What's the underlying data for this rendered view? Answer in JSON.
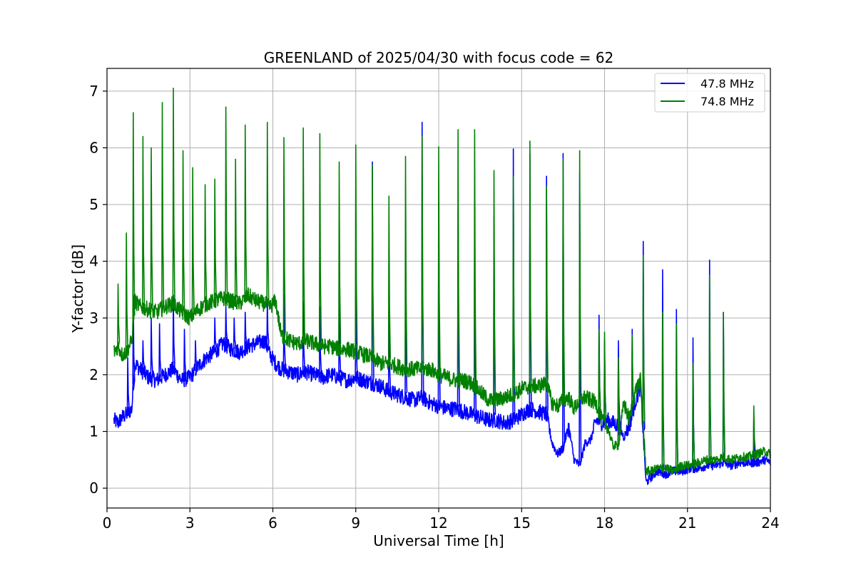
{
  "chart_data": {
    "type": "line",
    "title": "GREENLAND of 2025/04/30 with focus code = 62",
    "xlabel": "Universal Time [h]",
    "ylabel": "Y-factor [dB]",
    "xlim": [
      0,
      24
    ],
    "ylim": [
      -0.35,
      7.4
    ],
    "xticks": [
      0,
      3,
      6,
      9,
      12,
      15,
      18,
      21,
      24
    ],
    "yticks": [
      0,
      1,
      2,
      3,
      4,
      5,
      6,
      7
    ],
    "grid": true,
    "legend_position": "top-right",
    "series": [
      {
        "name": "47.8 MHz",
        "color": "#0000ff",
        "x": [
          0.25,
          0.4,
          0.55,
          0.7,
          0.9,
          1.0,
          1.2,
          1.5,
          1.8,
          2.1,
          2.4,
          2.7,
          3.0,
          3.3,
          3.6,
          3.9,
          4.2,
          4.5,
          4.8,
          5.1,
          5.4,
          5.7,
          5.9,
          6.1,
          6.3,
          6.6,
          6.9,
          7.2,
          7.5,
          7.8,
          8.1,
          8.4,
          8.7,
          9.0,
          9.3,
          9.6,
          9.9,
          10.2,
          10.5,
          10.8,
          11.1,
          11.4,
          11.7,
          12.0,
          12.3,
          12.6,
          12.9,
          13.2,
          13.5,
          13.8,
          14.1,
          14.4,
          14.7,
          15.0,
          15.3,
          15.6,
          15.9,
          16.1,
          16.3,
          16.5,
          16.7,
          16.9,
          17.1,
          17.3,
          17.5,
          17.7,
          17.9,
          18.1,
          18.3,
          18.5,
          18.7,
          18.9,
          19.1,
          19.3,
          19.5,
          19.7,
          19.9,
          20.2,
          20.5,
          20.8,
          21.1,
          21.4,
          21.7,
          22.0,
          22.3,
          22.6,
          22.9,
          23.2,
          23.5,
          23.8,
          24.0
        ],
        "y": [
          1.2,
          1.15,
          1.25,
          1.3,
          1.4,
          2.2,
          2.1,
          1.95,
          1.9,
          2.0,
          2.1,
          1.9,
          1.95,
          2.15,
          2.3,
          2.4,
          2.55,
          2.45,
          2.4,
          2.5,
          2.55,
          2.6,
          2.35,
          2.2,
          2.1,
          2.05,
          2.0,
          2.05,
          2.0,
          1.95,
          2.0,
          1.95,
          1.9,
          1.95,
          1.9,
          1.85,
          1.8,
          1.7,
          1.65,
          1.6,
          1.55,
          1.6,
          1.5,
          1.45,
          1.4,
          1.4,
          1.35,
          1.3,
          1.25,
          1.2,
          1.2,
          1.15,
          1.2,
          1.3,
          1.4,
          1.35,
          1.3,
          0.8,
          0.6,
          0.7,
          1.1,
          0.5,
          0.4,
          0.8,
          0.85,
          1.2,
          1.15,
          1.2,
          1.15,
          1.1,
          0.9,
          1.1,
          1.5,
          1.8,
          0.1,
          0.2,
          0.3,
          0.25,
          0.3,
          0.3,
          0.35,
          0.35,
          0.4,
          0.4,
          0.45,
          0.4,
          0.45,
          0.45,
          0.45,
          0.5,
          0.45
        ],
        "spikes": [
          [
            0.75,
            2.3
          ],
          [
            0.95,
            3.4
          ],
          [
            1.3,
            2.6
          ],
          [
            1.6,
            3.0
          ],
          [
            1.9,
            2.9
          ],
          [
            2.4,
            3.4
          ],
          [
            2.8,
            2.8
          ],
          [
            3.2,
            2.6
          ],
          [
            3.9,
            3.0
          ],
          [
            4.3,
            3.2
          ],
          [
            4.6,
            3.0
          ],
          [
            5.0,
            3.1
          ],
          [
            5.8,
            3.3
          ],
          [
            6.4,
            3.4
          ],
          [
            7.1,
            3.3
          ],
          [
            7.7,
            3.2
          ],
          [
            8.4,
            3.3
          ],
          [
            9.0,
            3.5
          ],
          [
            9.6,
            5.75
          ],
          [
            10.2,
            3.2
          ],
          [
            10.8,
            3.3
          ],
          [
            11.4,
            6.45
          ],
          [
            12.0,
            5.05
          ],
          [
            12.7,
            4.9
          ],
          [
            13.3,
            4.7
          ],
          [
            14.0,
            4.8
          ],
          [
            14.7,
            5.98
          ],
          [
            15.3,
            5.9
          ],
          [
            15.9,
            5.5
          ],
          [
            16.5,
            5.9
          ],
          [
            17.1,
            5.55
          ],
          [
            17.8,
            3.05
          ],
          [
            18.0,
            2.6
          ],
          [
            18.5,
            2.6
          ],
          [
            19.0,
            2.8
          ],
          [
            19.4,
            4.35
          ],
          [
            20.1,
            3.85
          ],
          [
            20.6,
            3.15
          ],
          [
            21.2,
            2.65
          ],
          [
            21.8,
            4.02
          ],
          [
            22.3,
            3.1
          ],
          [
            23.4,
            1.2
          ],
          [
            24.0,
            1.1
          ]
        ]
      },
      {
        "name": "74.8 MHz",
        "color": "#008000",
        "x": [
          0.25,
          0.4,
          0.55,
          0.7,
          0.9,
          1.0,
          1.2,
          1.5,
          1.8,
          2.1,
          2.4,
          2.7,
          3.0,
          3.3,
          3.6,
          3.9,
          4.2,
          4.5,
          4.8,
          5.1,
          5.4,
          5.7,
          5.9,
          6.1,
          6.3,
          6.6,
          6.9,
          7.2,
          7.5,
          7.8,
          8.1,
          8.4,
          8.7,
          9.0,
          9.3,
          9.6,
          9.9,
          10.2,
          10.5,
          10.8,
          11.1,
          11.4,
          11.7,
          12.0,
          12.3,
          12.6,
          12.9,
          13.2,
          13.5,
          13.8,
          14.1,
          14.4,
          14.7,
          15.0,
          15.3,
          15.6,
          15.9,
          16.1,
          16.3,
          16.5,
          16.7,
          16.9,
          17.1,
          17.3,
          17.5,
          17.7,
          17.9,
          18.1,
          18.3,
          18.5,
          18.7,
          18.9,
          19.1,
          19.3,
          19.5,
          19.7,
          19.9,
          20.2,
          20.5,
          20.8,
          21.1,
          21.4,
          21.7,
          22.0,
          22.3,
          22.6,
          22.9,
          23.2,
          23.5,
          23.8,
          24.0
        ],
        "y": [
          2.4,
          2.5,
          2.35,
          2.4,
          2.6,
          3.3,
          3.2,
          3.15,
          3.1,
          3.2,
          3.25,
          3.1,
          3.0,
          3.15,
          3.25,
          3.3,
          3.35,
          3.3,
          3.25,
          3.4,
          3.3,
          3.25,
          3.2,
          3.3,
          2.7,
          2.6,
          2.55,
          2.6,
          2.55,
          2.5,
          2.5,
          2.45,
          2.45,
          2.4,
          2.35,
          2.3,
          2.2,
          2.2,
          2.15,
          2.1,
          2.1,
          2.1,
          2.1,
          2.0,
          1.95,
          1.9,
          1.9,
          1.85,
          1.7,
          1.55,
          1.55,
          1.6,
          1.65,
          1.75,
          1.8,
          1.8,
          1.85,
          1.5,
          1.45,
          1.55,
          1.6,
          1.4,
          1.55,
          1.6,
          1.55,
          1.5,
          1.2,
          1.1,
          0.75,
          0.75,
          1.5,
          1.2,
          1.7,
          1.9,
          0.3,
          0.3,
          0.35,
          0.35,
          0.3,
          0.4,
          0.4,
          0.45,
          0.5,
          0.5,
          0.55,
          0.5,
          0.55,
          0.55,
          0.6,
          0.65,
          0.6
        ],
        "spikes": [
          [
            0.4,
            3.6
          ],
          [
            0.7,
            4.5
          ],
          [
            0.95,
            6.62
          ],
          [
            1.3,
            6.2
          ],
          [
            1.6,
            6.0
          ],
          [
            2.0,
            6.8
          ],
          [
            2.4,
            7.05
          ],
          [
            2.75,
            5.95
          ],
          [
            3.1,
            5.65
          ],
          [
            3.55,
            5.35
          ],
          [
            3.9,
            5.45
          ],
          [
            4.3,
            6.72
          ],
          [
            4.65,
            5.8
          ],
          [
            5.0,
            6.4
          ],
          [
            5.8,
            6.45
          ],
          [
            6.4,
            6.18
          ],
          [
            7.1,
            6.35
          ],
          [
            7.7,
            6.25
          ],
          [
            8.4,
            5.75
          ],
          [
            9.0,
            6.05
          ],
          [
            9.6,
            5.7
          ],
          [
            10.2,
            5.15
          ],
          [
            10.8,
            5.85
          ],
          [
            11.4,
            6.2
          ],
          [
            12.0,
            6.02
          ],
          [
            12.7,
            6.32
          ],
          [
            13.3,
            6.32
          ],
          [
            14.0,
            5.6
          ],
          [
            14.7,
            5.5
          ],
          [
            15.3,
            6.12
          ],
          [
            15.9,
            5.32
          ],
          [
            16.5,
            5.8
          ],
          [
            17.1,
            5.95
          ],
          [
            17.8,
            2.8
          ],
          [
            18.0,
            2.75
          ],
          [
            18.5,
            2.3
          ],
          [
            19.0,
            2.7
          ],
          [
            19.4,
            4.1
          ],
          [
            20.1,
            3.1
          ],
          [
            20.6,
            2.9
          ],
          [
            21.2,
            2.2
          ],
          [
            21.8,
            3.75
          ],
          [
            22.3,
            3.1
          ],
          [
            23.4,
            1.45
          ],
          [
            24.0,
            1.15
          ]
        ]
      }
    ]
  }
}
